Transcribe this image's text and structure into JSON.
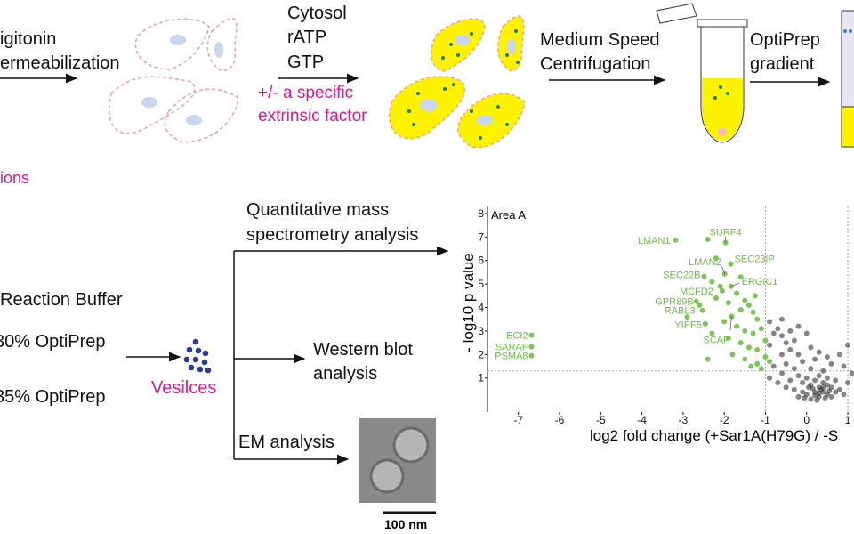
{
  "diagram": {
    "step1": [
      "igitonin",
      "ermeabilization"
    ],
    "step2": [
      "Cytosol",
      "rATP",
      "GTP"
    ],
    "step2_note": [
      "+/- a specific",
      "extrinsic factor"
    ],
    "step3": [
      "Medium Speed",
      "Centrifugation"
    ],
    "step4": [
      "OptiPrep",
      "gradient"
    ],
    "left_note": "ions",
    "buffer": [
      "Reaction Buffer",
      "30% OptiPrep",
      "35% OptiPrep"
    ],
    "vesicles": "Vesilces",
    "ms": [
      "Quantitative mass",
      "spectrometry analysis"
    ],
    "wb": [
      "Western blot",
      "analysis"
    ],
    "em": "EM analysis",
    "scale_bar": "100 nm"
  },
  "chart_data": {
    "type": "scatter",
    "annotation": "Area A",
    "xlabel": "log2 fold change (+Sar1A(H79G) / -S",
    "ylabel": "- log10 p value",
    "xlim": [
      -7.75,
      1.15
    ],
    "ylim": [
      -0.45,
      8.3
    ],
    "xticks": [
      -7,
      -6,
      -5,
      -4,
      -3,
      -2,
      -1,
      0,
      1
    ],
    "yticks": [
      1,
      2,
      3,
      4,
      5,
      6,
      7,
      8
    ],
    "threshold_x": [
      -1,
      1
    ],
    "threshold_y": 1.3,
    "series": [
      {
        "color": "#7dc556",
        "labels": [
          "ECI2",
          "SARAF",
          "PSMA8",
          "LMAN1",
          "SURF4",
          "LMAN2",
          "SEC23IP",
          "SEC22B",
          "ERGIC1",
          "MCFD2",
          "GPR89B",
          "RABL3",
          "YIPF5",
          "SCAP"
        ],
        "x": [
          -6.68,
          -6.68,
          -6.68,
          -3.18,
          -1.97,
          -1.99,
          -1.84,
          -2.49,
          -1.84,
          -2.05,
          -2.68,
          -2.53,
          -2.46,
          -1.82
        ],
        "values": [
          2.82,
          2.33,
          1.95,
          6.87,
          6.76,
          5.43,
          5.85,
          5.32,
          4.9,
          4.71,
          4.26,
          3.88,
          3.31,
          3.62
        ]
      },
      {
        "color": "#7dc556",
        "x": [
          -2.3,
          -2.1,
          -1.7,
          -1.5,
          -1.4,
          -2.2,
          -1.9,
          -1.6,
          -1.3,
          -1.2,
          -2.0,
          -1.7,
          -1.5,
          -1.3,
          -1.1,
          -2.3,
          -1.9,
          -1.6,
          -1.4,
          -1.2,
          -1.0,
          -1.8,
          -1.5,
          -1.2,
          -1.0,
          -2.4,
          -2.9,
          -2.6,
          -1.1,
          -1.35,
          -2.2,
          -1.6,
          -2.4,
          -1.25,
          -0.9
        ],
        "values": [
          5.1,
          4.9,
          4.6,
          4.3,
          4.1,
          4.4,
          4.2,
          3.9,
          3.8,
          3.5,
          3.4,
          3.2,
          3.0,
          2.9,
          3.1,
          2.9,
          2.7,
          2.5,
          2.3,
          2.2,
          2.6,
          2.0,
          1.8,
          1.6,
          1.9,
          1.8,
          3.6,
          4.1,
          1.4,
          1.5,
          6.1,
          5.3,
          6.9,
          4.5,
          1.7
        ]
      },
      {
        "color": "#222222",
        "x": [
          -0.9,
          -0.7,
          -0.6,
          -0.5,
          -0.8,
          -0.3,
          -0.4,
          -0.2,
          -0.9,
          -0.6,
          0.1,
          0.3,
          0.5,
          0.8,
          1.0,
          0.2,
          -0.1,
          -0.5,
          -0.8,
          0.6,
          0.9,
          -0.3,
          0.1,
          0.4,
          -0.6,
          -0.2,
          0.0,
          0.2,
          0.3,
          0.5,
          0.7,
          -0.4,
          -0.1,
          0.1,
          0.3,
          0.4,
          0.6,
          0.8,
          -0.5,
          -0.3,
          -0.1,
          0.0,
          0.2,
          0.3,
          0.4,
          0.5,
          0.6,
          0.7,
          -0.2,
          0.1,
          0.25,
          0.35,
          0.45,
          0.15,
          0.05,
          -0.05,
          0.55,
          0.9,
          1.0,
          -0.7,
          -0.9,
          1.1,
          -0.4,
          0.0,
          -0.6,
          -0.2,
          0.2,
          0.3,
          0.4,
          0.5
        ],
        "values": [
          3.4,
          3.1,
          2.8,
          2.5,
          2.9,
          2.6,
          2.2,
          2.0,
          2.4,
          2.0,
          2.3,
          2.1,
          1.9,
          2.0,
          2.4,
          1.8,
          1.7,
          1.6,
          1.5,
          1.6,
          1.5,
          1.4,
          1.4,
          1.3,
          1.2,
          1.1,
          1.0,
          0.9,
          1.1,
          1.0,
          0.9,
          0.9,
          0.8,
          0.7,
          0.6,
          0.8,
          0.6,
          0.5,
          0.6,
          0.5,
          0.4,
          0.3,
          0.4,
          0.2,
          0.4,
          0.3,
          0.2,
          0.4,
          0.2,
          0.1,
          0.05,
          0.5,
          0.15,
          0.55,
          0.6,
          0.15,
          0.45,
          0.3,
          0.8,
          0.8,
          1.0,
          1.2,
          3.0,
          2.9,
          3.5,
          3.2,
          0.25,
          0.35,
          0.6,
          0.7
        ]
      }
    ]
  }
}
